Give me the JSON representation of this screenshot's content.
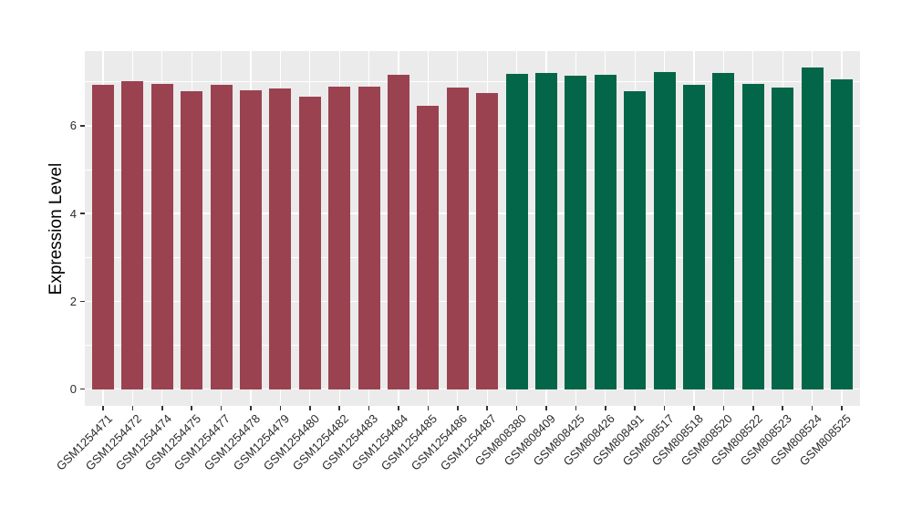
{
  "chart_data": {
    "type": "bar",
    "title": "",
    "xlabel": "",
    "ylabel": "Expression Level",
    "categories": [
      "GSM1254471",
      "GSM1254472",
      "GSM1254474",
      "GSM1254475",
      "GSM1254477",
      "GSM1254478",
      "GSM1254479",
      "GSM1254480",
      "GSM1254482",
      "GSM1254483",
      "GSM1254484",
      "GSM1254485",
      "GSM1254486",
      "GSM1254487",
      "GSM808380",
      "GSM808409",
      "GSM808425",
      "GSM808426",
      "GSM808491",
      "GSM808517",
      "GSM808518",
      "GSM808520",
      "GSM808522",
      "GSM808523",
      "GSM808524",
      "GSM808525"
    ],
    "values": [
      6.93,
      7.01,
      6.96,
      6.79,
      6.93,
      6.81,
      6.84,
      6.67,
      6.9,
      6.9,
      7.16,
      6.46,
      6.86,
      6.74,
      7.18,
      7.21,
      7.14,
      7.17,
      6.79,
      7.23,
      6.94,
      7.2,
      6.95,
      6.86,
      7.33,
      7.06
    ],
    "groups": [
      "GSM1254",
      "GSM1254",
      "GSM1254",
      "GSM1254",
      "GSM1254",
      "GSM1254",
      "GSM1254",
      "GSM1254",
      "GSM1254",
      "GSM1254",
      "GSM1254",
      "GSM1254",
      "GSM1254",
      "GSM1254",
      "GSM808",
      "GSM808",
      "GSM808",
      "GSM808",
      "GSM808",
      "GSM808",
      "GSM808",
      "GSM808",
      "GSM808",
      "GSM808",
      "GSM808",
      "GSM808"
    ],
    "group_colors": {
      "GSM1254": "#9A4250",
      "GSM808": "#036648"
    },
    "yticks": [
      0,
      2,
      4,
      6
    ],
    "minor_gridlines": [
      1,
      3,
      5,
      7
    ],
    "ylim": [
      -0.38,
      7.7
    ],
    "x_label_rotation_deg": 45,
    "grid": "major-and-minor",
    "legend": "none",
    "panel_bg": "#EBEBEB",
    "grid_color": "#FFFFFF",
    "tick_mark_color": "#333333",
    "axis_text_color": "#2B2B2B",
    "axis_title_color": "#000000"
  }
}
